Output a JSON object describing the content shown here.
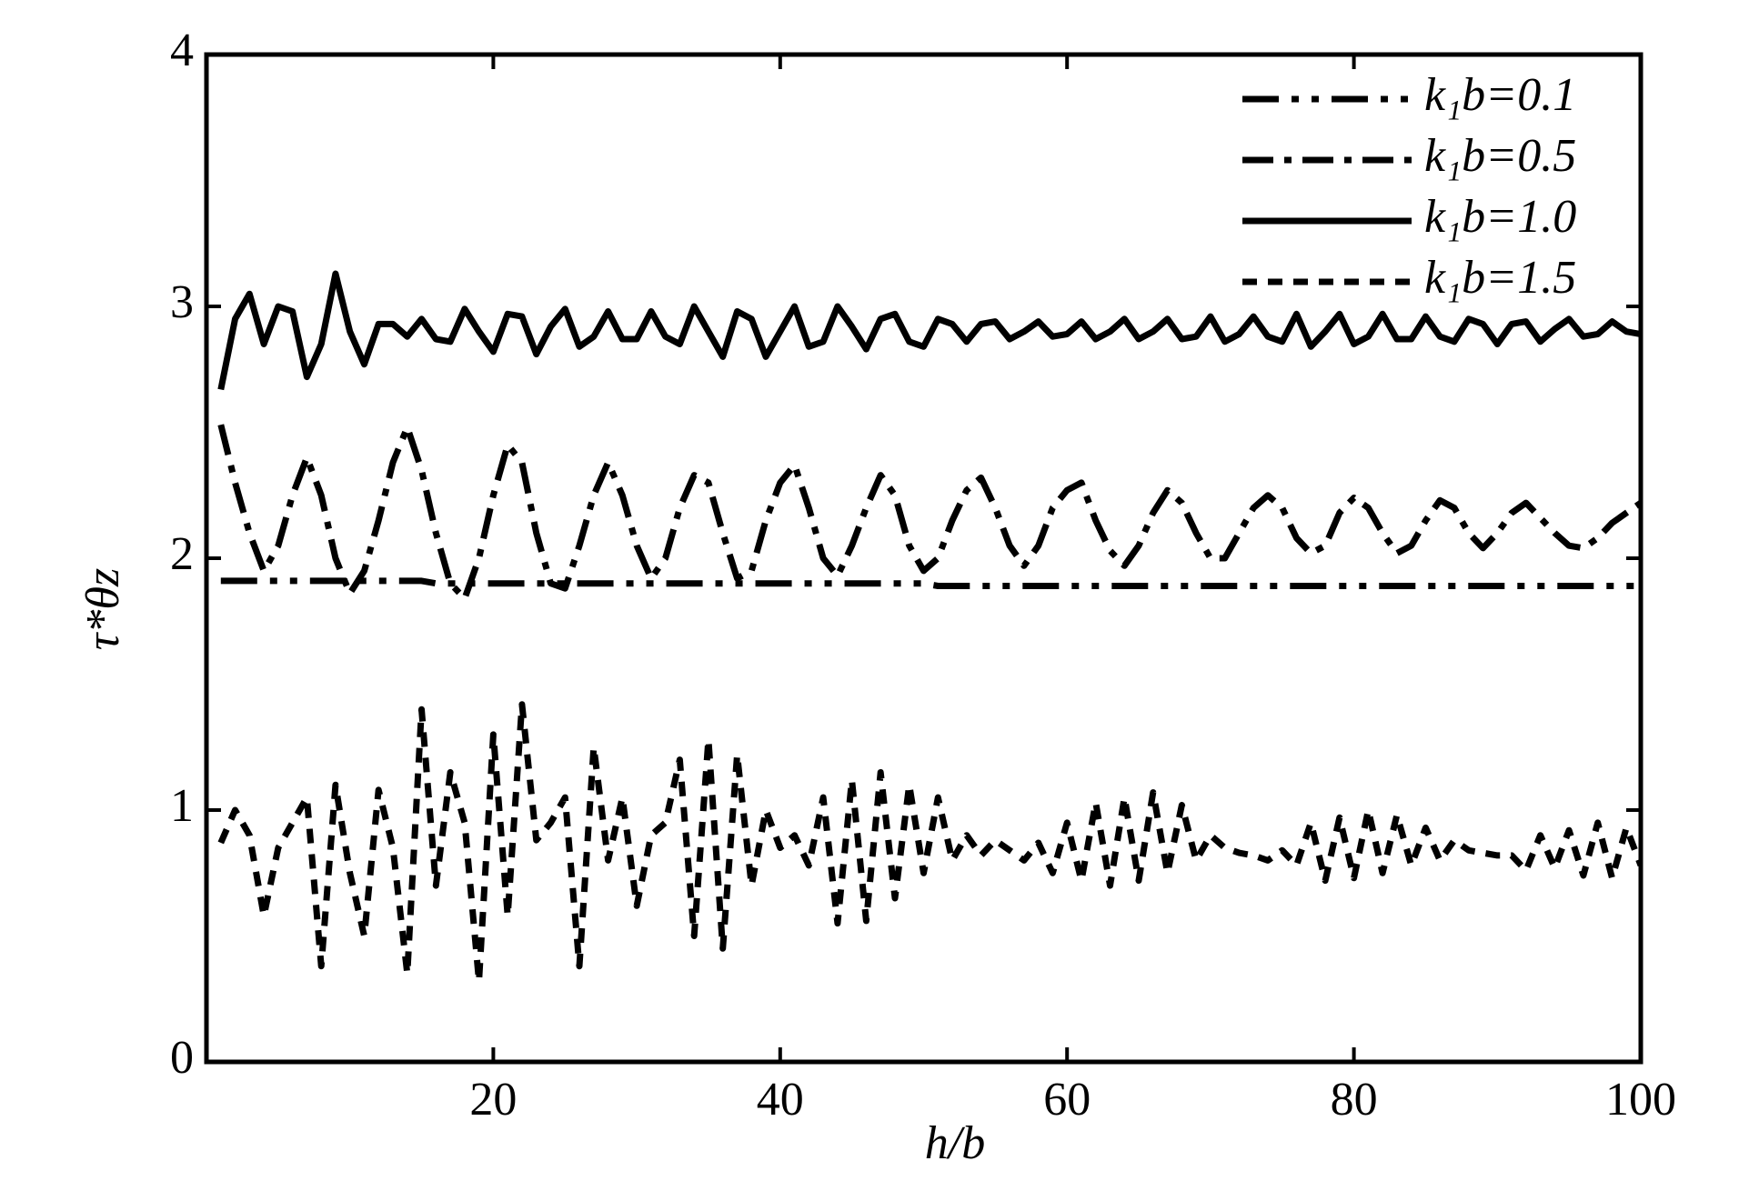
{
  "chart_data": {
    "type": "line",
    "xlabel": "h/b",
    "ylabel": "τ*θz",
    "xlim": [
      0,
      100
    ],
    "xticks": [
      20,
      40,
      60,
      80,
      100
    ],
    "ylim": [
      0,
      4
    ],
    "yticks": [
      0,
      1,
      2,
      3,
      4
    ],
    "legend": "upper right",
    "grid": false,
    "x": [
      1,
      2,
      3,
      4,
      5,
      6,
      7,
      8,
      9,
      10,
      11,
      12,
      13,
      14,
      15,
      16,
      17,
      18,
      19,
      20,
      21,
      22,
      23,
      24,
      25,
      26,
      27,
      28,
      29,
      30,
      31,
      32,
      33,
      34,
      35,
      36,
      37,
      38,
      39,
      40,
      41,
      42,
      43,
      44,
      45,
      46,
      47,
      48,
      49,
      50,
      51,
      52,
      53,
      54,
      55,
      56,
      57,
      58,
      59,
      60,
      61,
      62,
      63,
      64,
      65,
      66,
      67,
      68,
      69,
      70,
      71,
      72,
      73,
      74,
      75,
      76,
      77,
      78,
      79,
      80,
      81,
      82,
      83,
      84,
      85,
      86,
      87,
      88,
      89,
      90,
      91,
      92,
      93,
      94,
      95,
      96,
      97,
      98,
      99,
      100
    ],
    "series": [
      {
        "name": "k₁b=0.1",
        "color": "#000000",
        "linestyle": "dashdotdot",
        "values": [
          1.91,
          1.91,
          1.91,
          1.91,
          1.91,
          1.91,
          1.91,
          1.91,
          1.91,
          1.91,
          1.91,
          1.91,
          1.91,
          1.91,
          1.91,
          1.9,
          1.9,
          1.9,
          1.9,
          1.9,
          1.9,
          1.9,
          1.9,
          1.9,
          1.9,
          1.9,
          1.9,
          1.9,
          1.9,
          1.9,
          1.9,
          1.9,
          1.9,
          1.9,
          1.9,
          1.9,
          1.9,
          1.9,
          1.9,
          1.9,
          1.9,
          1.9,
          1.9,
          1.9,
          1.9,
          1.9,
          1.9,
          1.9,
          1.9,
          1.9,
          1.89,
          1.89,
          1.89,
          1.89,
          1.89,
          1.89,
          1.89,
          1.89,
          1.89,
          1.89,
          1.89,
          1.89,
          1.89,
          1.89,
          1.89,
          1.89,
          1.89,
          1.89,
          1.89,
          1.89,
          1.89,
          1.89,
          1.89,
          1.89,
          1.89,
          1.89,
          1.89,
          1.89,
          1.89,
          1.89,
          1.89,
          1.89,
          1.89,
          1.89,
          1.89,
          1.89,
          1.89,
          1.89,
          1.89,
          1.89,
          1.89,
          1.89,
          1.89,
          1.89,
          1.89,
          1.89,
          1.89,
          1.89,
          1.89,
          1.89
        ]
      },
      {
        "name": "k₁b=0.5",
        "color": "#000000",
        "linestyle": "dashdot",
        "values": [
          2.53,
          2.3,
          2.1,
          1.95,
          2.05,
          2.25,
          2.4,
          2.25,
          2.0,
          1.86,
          1.95,
          2.15,
          2.38,
          2.52,
          2.35,
          2.1,
          1.9,
          1.84,
          2.0,
          2.25,
          2.45,
          2.38,
          2.1,
          1.9,
          1.88,
          2.05,
          2.25,
          2.38,
          2.25,
          2.05,
          1.92,
          2.0,
          2.2,
          2.33,
          2.3,
          2.1,
          1.92,
          1.95,
          2.15,
          2.3,
          2.37,
          2.2,
          2.0,
          1.93,
          2.05,
          2.2,
          2.33,
          2.25,
          2.05,
          1.95,
          2.0,
          2.15,
          2.27,
          2.32,
          2.2,
          2.05,
          1.97,
          2.05,
          2.2,
          2.27,
          2.3,
          2.15,
          2.03,
          1.97,
          2.05,
          2.18,
          2.27,
          2.22,
          2.1,
          2.0,
          2.0,
          2.1,
          2.2,
          2.25,
          2.2,
          2.08,
          2.02,
          2.05,
          2.18,
          2.24,
          2.2,
          2.1,
          2.02,
          2.05,
          2.15,
          2.23,
          2.2,
          2.1,
          2.04,
          2.1,
          2.18,
          2.22,
          2.16,
          2.1,
          2.05,
          2.04,
          2.08,
          2.14,
          2.18,
          2.22
        ]
      },
      {
        "name": "k₁b=1.0",
        "color": "#000000",
        "linestyle": "solid",
        "values": [
          2.67,
          2.95,
          3.05,
          2.85,
          3.0,
          2.98,
          2.72,
          2.85,
          3.13,
          2.9,
          2.77,
          2.93,
          2.93,
          2.88,
          2.95,
          2.87,
          2.86,
          2.99,
          2.9,
          2.82,
          2.97,
          2.96,
          2.81,
          2.92,
          2.99,
          2.84,
          2.88,
          2.98,
          2.87,
          2.87,
          2.98,
          2.88,
          2.85,
          3.0,
          2.9,
          2.8,
          2.98,
          2.95,
          2.8,
          2.9,
          3.0,
          2.84,
          2.86,
          3.0,
          2.92,
          2.83,
          2.95,
          2.97,
          2.86,
          2.84,
          2.95,
          2.93,
          2.86,
          2.93,
          2.94,
          2.87,
          2.9,
          2.94,
          2.88,
          2.89,
          2.94,
          2.87,
          2.9,
          2.95,
          2.87,
          2.9,
          2.95,
          2.87,
          2.88,
          2.96,
          2.86,
          2.89,
          2.96,
          2.88,
          2.86,
          2.97,
          2.84,
          2.9,
          2.97,
          2.85,
          2.88,
          2.97,
          2.87,
          2.87,
          2.96,
          2.88,
          2.86,
          2.95,
          2.93,
          2.85,
          2.93,
          2.94,
          2.86,
          2.91,
          2.95,
          2.88,
          2.89,
          2.94,
          2.9,
          2.89
        ]
      },
      {
        "name": "k₁b=1.5",
        "color": "#000000",
        "linestyle": "dashed",
        "values": [
          0.87,
          1.0,
          0.9,
          0.58,
          0.85,
          0.95,
          1.05,
          0.38,
          1.1,
          0.75,
          0.5,
          1.08,
          0.85,
          0.35,
          1.4,
          0.7,
          1.15,
          0.95,
          0.32,
          1.3,
          0.58,
          1.42,
          0.88,
          0.95,
          1.05,
          0.38,
          1.25,
          0.8,
          1.05,
          0.62,
          0.9,
          0.95,
          1.2,
          0.5,
          1.28,
          0.45,
          1.22,
          0.7,
          1.0,
          0.85,
          0.9,
          0.78,
          1.05,
          0.55,
          1.12,
          0.56,
          1.15,
          0.65,
          1.1,
          0.75,
          1.05,
          0.8,
          0.9,
          0.82,
          0.88,
          0.84,
          0.8,
          0.87,
          0.75,
          0.95,
          0.72,
          1.03,
          0.7,
          1.05,
          0.72,
          1.07,
          0.75,
          1.02,
          0.8,
          0.9,
          0.85,
          0.83,
          0.82,
          0.8,
          0.84,
          0.78,
          0.95,
          0.72,
          0.97,
          0.73,
          1.0,
          0.75,
          0.98,
          0.78,
          0.93,
          0.8,
          0.88,
          0.84,
          0.83,
          0.82,
          0.82,
          0.76,
          0.9,
          0.77,
          0.92,
          0.74,
          0.95,
          0.73,
          0.93,
          0.78
        ]
      }
    ]
  }
}
